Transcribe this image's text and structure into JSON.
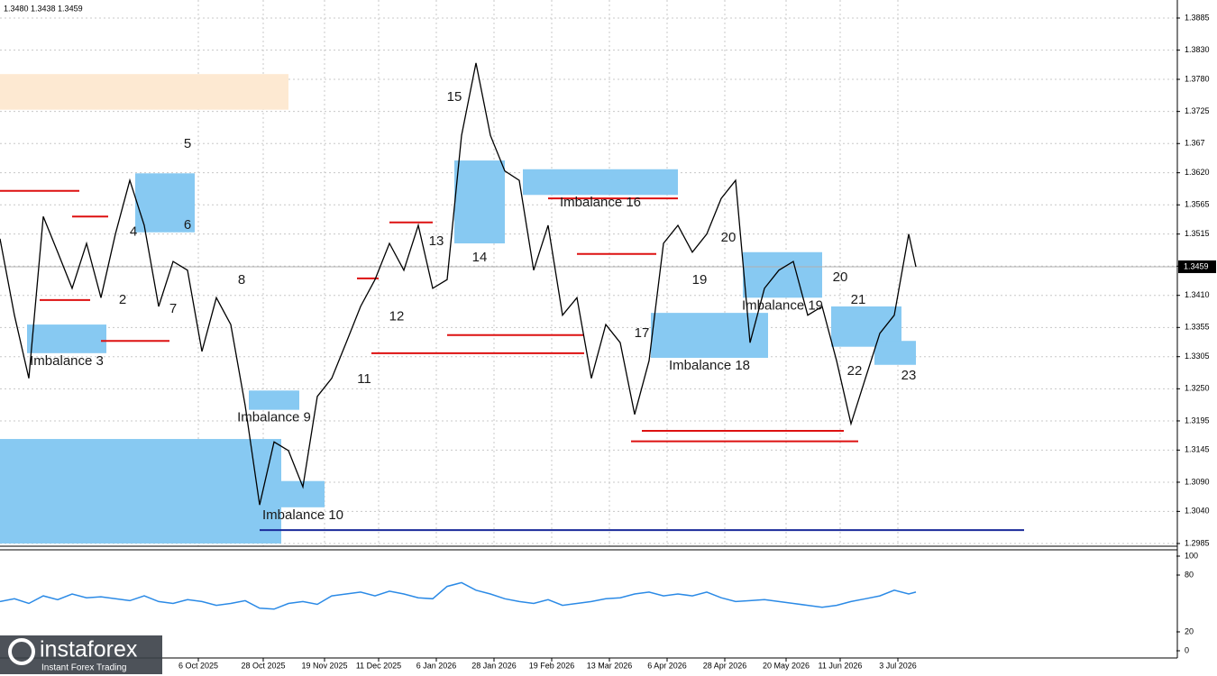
{
  "chart_data": [
    {
      "type": "line",
      "title": "1.3480 1.3438 1.3459",
      "color": "#000000",
      "x": [
        0,
        4,
        8,
        12,
        16,
        20,
        24,
        28,
        32,
        36,
        40,
        44,
        48,
        52,
        56,
        60,
        64,
        68,
        72,
        76,
        80,
        84,
        88,
        92,
        96,
        100,
        104,
        108,
        112,
        116,
        120,
        124,
        128,
        132,
        136,
        140,
        144,
        148,
        152,
        156,
        160,
        164,
        168,
        172,
        176,
        180,
        184,
        188,
        192,
        196,
        200,
        204,
        208,
        212,
        216,
        220,
        224,
        228,
        232,
        236,
        240,
        244,
        248,
        252,
        254
      ],
      "values": [
        1.3507,
        1.3376,
        1.3268,
        1.3545,
        1.3484,
        1.3422,
        1.3499,
        1.3406,
        1.3515,
        1.3607,
        1.353,
        1.3391,
        1.3468,
        1.3453,
        1.3314,
        1.3406,
        1.336,
        1.3221,
        1.3051,
        1.3159,
        1.3144,
        1.3082,
        1.3237,
        1.3268,
        1.3329,
        1.3391,
        1.3437,
        1.3499,
        1.3453,
        1.353,
        1.3422,
        1.3437,
        1.3684,
        1.3808,
        1.3684,
        1.3623,
        1.3607,
        1.3453,
        1.353,
        1.3376,
        1.3406,
        1.3268,
        1.336,
        1.3329,
        1.3206,
        1.3298,
        1.3499,
        1.353,
        1.3484,
        1.3515,
        1.3576,
        1.3607,
        1.3329,
        1.3422,
        1.3453,
        1.3468,
        1.3376,
        1.3391,
        1.3298,
        1.319,
        1.3268,
        1.3345,
        1.3376,
        1.3515,
        1.3459
      ],
      "xlim": [
        0,
        326.25
      ],
      "xticks": [
        {
          "value": 55,
          "label": "6 Oct 2025"
        },
        {
          "value": 73,
          "label": "28 Oct 2025"
        },
        {
          "value": 90,
          "label": "19 Nov 2025"
        },
        {
          "value": 105,
          "label": "11 Dec 2025"
        },
        {
          "value": 121,
          "label": "6 Jan 2026"
        },
        {
          "value": 137,
          "label": "28 Jan 2026"
        },
        {
          "value": 153,
          "label": "19 Feb 2026"
        },
        {
          "value": 169,
          "label": "13 Mar 2026"
        },
        {
          "value": 185,
          "label": "6 Apr 2026"
        },
        {
          "value": 201,
          "label": "28 Apr 2026"
        },
        {
          "value": 218,
          "label": "20 May 2026"
        },
        {
          "value": 233,
          "label": "11 Jun 2026"
        },
        {
          "value": 249,
          "label": "3 Jul 2026"
        }
      ],
      "ylim": [
        1.2985,
        1.3885
      ],
      "yticks": [
        1.3885,
        {
          "value": 1.383,
          "label": "1.3830"
        },
        {
          "value": 1.378,
          "label": "1.3780"
        },
        1.3725,
        1.367,
        {
          "value": 1.362,
          "label": "1.3620"
        },
        1.3565,
        1.3515,
        {
          "value": 1.346,
          "label": "1.3460"
        },
        {
          "value": 1.341,
          "label": "1.3410"
        },
        1.3355,
        1.3305,
        {
          "value": 1.325,
          "label": "1.3250"
        },
        1.3195,
        1.3145,
        {
          "value": 1.309,
          "label": "1.3090"
        },
        {
          "value": 1.304,
          "label": "1.3040"
        },
        1.2985
      ],
      "grid": true,
      "last_price": 1.3459,
      "zones": [
        {
          "x0": 0,
          "x1": 80,
          "low": 1.3728,
          "high": 1.3789,
          "color": "#fde9d2"
        },
        {
          "x0": 0,
          "x1": 78,
          "low": 1.2985,
          "high": 1.3164,
          "color": "#87c9f2"
        },
        {
          "x0": 7.5,
          "x1": 29.5,
          "low": 1.3311,
          "high": 1.336,
          "color": "#87c9f2",
          "label": "Imbalance 3"
        },
        {
          "x0": 37.5,
          "x1": 54,
          "low": 1.3518,
          "high": 1.3619,
          "color": "#87c9f2"
        },
        {
          "x0": 69,
          "x1": 83,
          "low": 1.3214,
          "high": 1.3247,
          "color": "#87c9f2",
          "label": "Imbalance 9"
        },
        {
          "x0": 78,
          "x1": 90,
          "low": 1.3047,
          "high": 1.3092,
          "color": "#87c9f2",
          "label": "Imbalance 10"
        },
        {
          "x0": 126,
          "x1": 140,
          "low": 1.3499,
          "high": 1.3641,
          "color": "#87c9f2"
        },
        {
          "x0": 145,
          "x1": 188,
          "low": 1.3582,
          "high": 1.3626,
          "color": "#87c9f2",
          "label": "Imbalance 16"
        },
        {
          "x0": 180.5,
          "x1": 213,
          "low": 1.3303,
          "high": 1.338,
          "color": "#87c9f2",
          "label": "Imbalance 18"
        },
        {
          "x0": 206,
          "x1": 228,
          "low": 1.3406,
          "high": 1.3484,
          "color": "#87c9f2",
          "label": "Imbalance 19"
        },
        {
          "x0": 230.5,
          "x1": 250,
          "low": 1.3322,
          "high": 1.3391,
          "color": "#87c9f2"
        },
        {
          "x0": 242.5,
          "x1": 254,
          "low": 1.3291,
          "high": 1.3332,
          "color": "#87c9f2"
        }
      ],
      "annotations": [
        {
          "text": "2",
          "x": 34,
          "y": 1.3402
        },
        {
          "text": "4",
          "x": 37,
          "y": 1.3518
        },
        {
          "text": "5",
          "x": 52,
          "y": 1.3669
        },
        {
          "text": "6",
          "x": 52,
          "y": 1.353
        },
        {
          "text": "7",
          "x": 48,
          "y": 1.3386
        },
        {
          "text": "8",
          "x": 67,
          "y": 1.3436
        },
        {
          "text": "11",
          "x": 101,
          "y": 1.3266
        },
        {
          "text": "12",
          "x": 110,
          "y": 1.3373
        },
        {
          "text": "13",
          "x": 121,
          "y": 1.3502
        },
        {
          "text": "14",
          "x": 133,
          "y": 1.3474
        },
        {
          "text": "15",
          "x": 126,
          "y": 1.3749
        },
        {
          "text": "17",
          "x": 178,
          "y": 1.3345
        },
        {
          "text": "19",
          "x": 194,
          "y": 1.3436
        },
        {
          "text": "20",
          "x": 202,
          "y": 1.3508
        },
        {
          "text": "20",
          "x": 233,
          "y": 1.344
        },
        {
          "text": "21",
          "x": 238,
          "y": 1.3402
        },
        {
          "text": "22",
          "x": 237,
          "y": 1.328
        },
        {
          "text": "23",
          "x": 252,
          "y": 1.3272
        }
      ],
      "levels": [
        {
          "x0": 0,
          "x1": 22,
          "value": 1.3589,
          "color": "#dd1111"
        },
        {
          "x0": 20,
          "x1": 30,
          "value": 1.3545,
          "color": "#dd1111"
        },
        {
          "x0": 11,
          "x1": 25,
          "value": 1.3402,
          "color": "#dd1111"
        },
        {
          "x0": 28,
          "x1": 47,
          "value": 1.3332,
          "color": "#dd1111"
        },
        {
          "x0": 99,
          "x1": 105,
          "value": 1.3439,
          "color": "#dd1111"
        },
        {
          "x0": 108,
          "x1": 120,
          "value": 1.3535,
          "color": "#dd1111"
        },
        {
          "x0": 124,
          "x1": 162,
          "value": 1.3342,
          "color": "#dd1111"
        },
        {
          "x0": 103,
          "x1": 162,
          "value": 1.3311,
          "color": "#dd1111"
        },
        {
          "x0": 152,
          "x1": 188,
          "value": 1.3576,
          "color": "#dd1111"
        },
        {
          "x0": 160,
          "x1": 182,
          "value": 1.3481,
          "color": "#dd1111"
        },
        {
          "x0": 178,
          "x1": 234,
          "value": 1.3178,
          "color": "#dd1111"
        },
        {
          "x0": 175,
          "x1": 238,
          "value": 1.316,
          "color": "#dd1111"
        },
        {
          "x0": 72,
          "x1": 284,
          "value": 1.3008,
          "color": "#1a2a9a"
        }
      ],
      "watermark": {
        "brand": "instaforex",
        "tagline": "Instant Forex Trading"
      }
    },
    {
      "type": "line",
      "color": "#2b8ae6",
      "x": [
        0,
        4,
        8,
        12,
        16,
        20,
        24,
        28,
        32,
        36,
        40,
        44,
        48,
        52,
        56,
        60,
        64,
        68,
        72,
        76,
        80,
        84,
        88,
        92,
        96,
        100,
        104,
        108,
        112,
        116,
        120,
        124,
        128,
        132,
        136,
        140,
        144,
        148,
        152,
        156,
        160,
        164,
        168,
        172,
        176,
        180,
        184,
        188,
        192,
        196,
        200,
        204,
        208,
        212,
        216,
        220,
        224,
        228,
        232,
        236,
        240,
        244,
        248,
        252,
        254
      ],
      "values": [
        52,
        55,
        50,
        58,
        54,
        60,
        56,
        57,
        55,
        53,
        58,
        52,
        50,
        54,
        52,
        48,
        50,
        53,
        45,
        44,
        50,
        52,
        49,
        58,
        60,
        62,
        58,
        63,
        60,
        56,
        55,
        68,
        72,
        64,
        60,
        55,
        52,
        50,
        54,
        48,
        50,
        52,
        55,
        56,
        60,
        62,
        58,
        60,
        58,
        62,
        56,
        52,
        53,
        54,
        52,
        50,
        48,
        46,
        48,
        52,
        55,
        58,
        64,
        60,
        62
      ],
      "xlim": [
        0,
        326.25
      ],
      "ylim": [
        0,
        100
      ],
      "yticks": [
        0,
        20,
        80,
        100
      ]
    }
  ]
}
